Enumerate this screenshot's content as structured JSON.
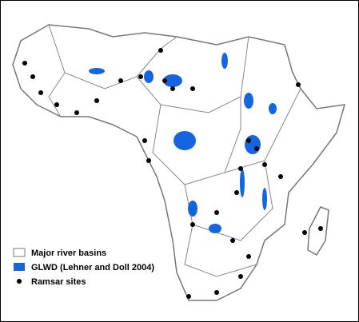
{
  "legend": {
    "items": [
      "Major river basins",
      "GLWD (Lehner and Doll 2004)",
      "Ramsar sites"
    ]
  }
}
